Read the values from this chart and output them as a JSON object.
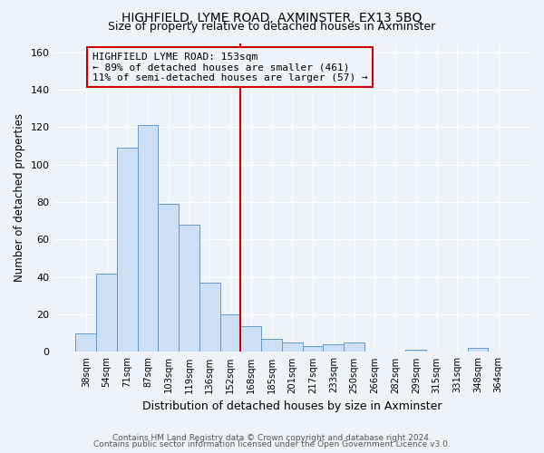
{
  "title": "HIGHFIELD, LYME ROAD, AXMINSTER, EX13 5BQ",
  "subtitle": "Size of property relative to detached houses in Axminster",
  "xlabel": "Distribution of detached houses by size in Axminster",
  "ylabel": "Number of detached properties",
  "bar_labels": [
    "38sqm",
    "54sqm",
    "71sqm",
    "87sqm",
    "103sqm",
    "119sqm",
    "136sqm",
    "152sqm",
    "168sqm",
    "185sqm",
    "201sqm",
    "217sqm",
    "233sqm",
    "250sqm",
    "266sqm",
    "282sqm",
    "299sqm",
    "315sqm",
    "331sqm",
    "348sqm",
    "364sqm"
  ],
  "bar_heights": [
    10,
    42,
    109,
    121,
    79,
    68,
    37,
    20,
    14,
    7,
    5,
    3,
    4,
    5,
    0,
    0,
    1,
    0,
    0,
    2,
    0
  ],
  "bar_color": "#ccdff5",
  "bar_edge_color": "#6699cc",
  "vline_x_index": 7,
  "vline_color": "#cc0000",
  "annotation_title": "HIGHFIELD LYME ROAD: 153sqm",
  "annotation_line1": "← 89% of detached houses are smaller (461)",
  "annotation_line2": "11% of semi-detached houses are larger (57) →",
  "annotation_box_edge": "#cc0000",
  "ylim": [
    0,
    165
  ],
  "yticks": [
    0,
    20,
    40,
    60,
    80,
    100,
    120,
    140,
    160
  ],
  "footer1": "Contains HM Land Registry data © Crown copyright and database right 2024.",
  "footer2": "Contains public sector information licensed under the Open Government Licence v3.0.",
  "bg_color": "#eef2f9",
  "grid_color": "#ffffff"
}
